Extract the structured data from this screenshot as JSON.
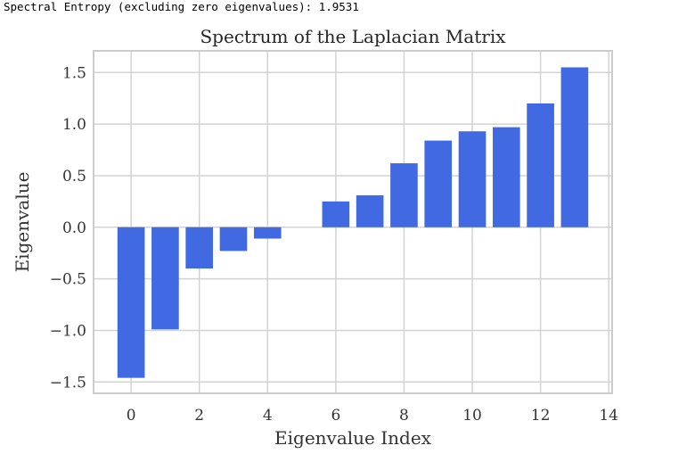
{
  "output_text": "Spectral Entropy (excluding zero eigenvalues): 1.9531",
  "chart_data": {
    "type": "bar",
    "title": "Spectrum of the Laplacian Matrix",
    "xlabel": "Eigenvalue Index",
    "ylabel": "Eigenvalue",
    "categories": [
      0,
      1,
      2,
      3,
      4,
      5,
      6,
      7,
      8,
      9,
      10,
      11,
      12,
      13
    ],
    "values": [
      -1.46,
      -0.99,
      -0.4,
      -0.23,
      -0.11,
      0.0,
      0.25,
      0.31,
      0.62,
      0.84,
      0.93,
      0.97,
      1.2,
      1.55
    ],
    "xlim": [
      -1.1,
      14.1
    ],
    "ylim": [
      -1.61,
      1.71
    ],
    "xticks": [
      0,
      2,
      4,
      6,
      8,
      10,
      12,
      14
    ],
    "xtick_labels": [
      "0",
      "2",
      "4",
      "6",
      "8",
      "10",
      "12",
      "14"
    ],
    "yticks": [
      -1.5,
      -1.0,
      -0.5,
      0.0,
      0.5,
      1.0,
      1.5
    ],
    "ytick_labels": [
      "−1.5",
      "−1.0",
      "−0.5",
      "0.0",
      "0.5",
      "1.0",
      "1.5"
    ],
    "bar_color": "#4169E1",
    "grid": true,
    "grid_color": "#d3d3d3",
    "axes_edge_color": "#cccccc"
  }
}
